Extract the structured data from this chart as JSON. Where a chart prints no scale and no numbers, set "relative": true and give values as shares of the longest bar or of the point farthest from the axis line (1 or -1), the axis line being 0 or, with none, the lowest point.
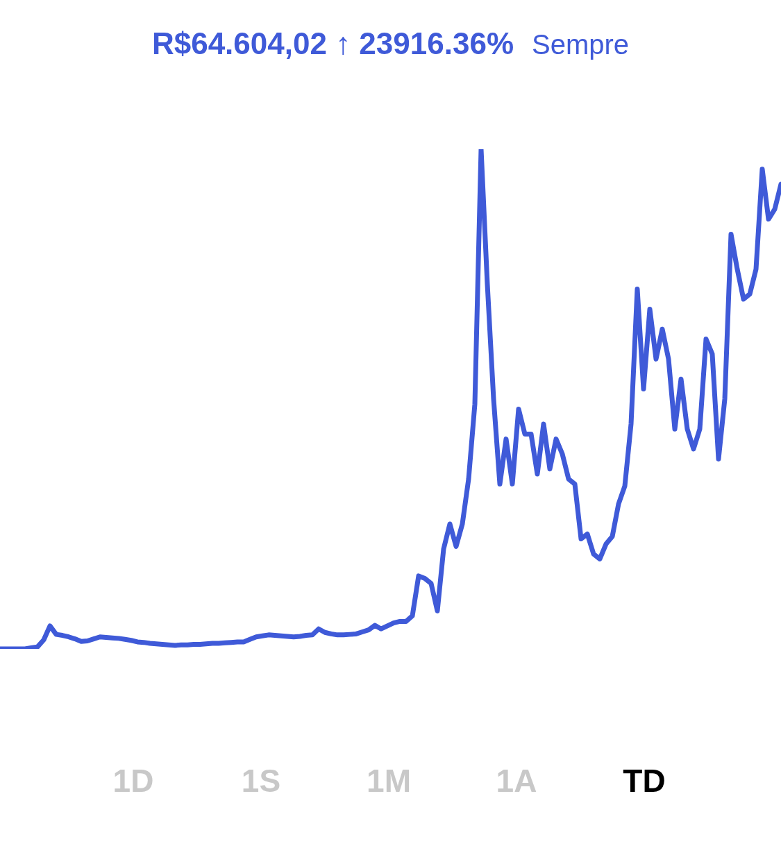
{
  "chart_data": {
    "type": "line",
    "title": "R$64.604,02 ↑ 23916.36%",
    "subtitle": "Sempre",
    "relative": true,
    "marker": "none",
    "line_style": "solid",
    "annotations": [
      "1D",
      "1S",
      "1M",
      "1A",
      "TD"
    ],
    "categories": [
      null,
      null,
      null,
      null,
      null,
      null,
      null,
      null,
      null,
      null,
      null,
      null,
      null,
      null,
      null,
      null,
      null,
      null,
      null,
      null,
      null,
      null,
      null,
      null,
      null,
      null,
      null,
      null,
      null,
      null,
      null,
      null,
      null,
      null,
      null,
      null,
      null,
      null,
      null,
      null,
      null,
      null,
      null,
      null,
      null,
      null,
      null,
      null,
      null,
      null,
      null,
      null,
      null,
      null,
      null,
      null,
      null,
      null,
      null,
      null,
      null,
      null,
      null,
      null,
      null,
      null,
      null,
      null,
      null,
      null,
      null,
      null,
      null,
      null,
      null,
      null,
      null,
      null,
      null,
      null,
      null,
      null,
      null,
      null,
      null,
      null,
      null,
      null,
      null,
      null,
      null,
      null,
      null,
      null,
      null,
      null,
      null,
      null,
      null,
      null,
      null,
      null,
      null,
      null,
      null,
      null,
      null,
      null,
      null,
      null,
      null,
      null,
      null,
      null,
      null,
      null,
      null,
      null,
      null,
      null,
      null,
      null,
      null,
      null,
      null,
      null
    ],
    "series": [
      {
        "color": "#3f5ad8",
        "values": [
          0,
          0,
          0,
          0,
          0,
          0.002,
          0.004,
          0.018,
          0.046,
          0.029,
          0.027,
          0.024,
          0.02,
          0.015,
          0.016,
          0.02,
          0.024,
          0.023,
          0.022,
          0.021,
          0.019,
          0.017,
          0.014,
          0.013,
          0.011,
          0.01,
          0.009,
          0.008,
          0.007,
          0.008,
          0.008,
          0.009,
          0.009,
          0.01,
          0.011,
          0.011,
          0.012,
          0.013,
          0.014,
          0.014,
          0.019,
          0.024,
          0.026,
          0.028,
          0.027,
          0.026,
          0.025,
          0.024,
          0.025,
          0.027,
          0.028,
          0.04,
          0.033,
          0.03,
          0.028,
          0.028,
          0.029,
          0.03,
          0.034,
          0.038,
          0.047,
          0.04,
          0.046,
          0.052,
          0.055,
          0.055,
          0.066,
          0.146,
          0.141,
          0.131,
          0.076,
          0.2,
          0.25,
          0.205,
          0.25,
          0.34,
          0.49,
          1,
          0.73,
          0.5,
          0.33,
          0.42,
          0.33,
          0.48,
          0.43,
          0.43,
          0.35,
          0.45,
          0.36,
          0.42,
          0.39,
          0.34,
          0.33,
          0.22,
          0.23,
          0.19,
          0.18,
          0.21,
          0.225,
          0.29,
          0.326,
          0.45,
          0.72,
          0.52,
          0.68,
          0.58,
          0.64,
          0.58,
          0.44,
          0.54,
          0.44,
          0.4,
          0.44,
          0.62,
          0.59,
          0.38,
          0.5,
          0.83,
          0.76,
          0.7,
          0.71,
          0.76,
          0.96,
          0.86,
          0.88,
          0.93
        ]
      }
    ]
  }
}
